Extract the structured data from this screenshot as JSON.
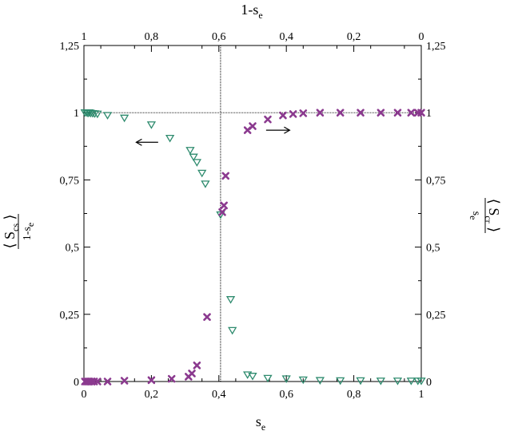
{
  "chart_data": {
    "type": "scatter",
    "x_axis": {
      "label": "s",
      "label_sub": "e",
      "range": [
        0,
        1
      ],
      "ticks": [
        0,
        0.2,
        0.4,
        0.6,
        0.8,
        1
      ],
      "tick_labels": [
        "0",
        "0,2",
        "0,4",
        "0,6",
        "0,8",
        "1"
      ]
    },
    "top_axis": {
      "label": "1-s",
      "label_sub": "e",
      "range": [
        1,
        0
      ],
      "ticks": [
        1,
        0.8,
        0.6,
        0.4,
        0.2,
        0
      ],
      "tick_labels": [
        "1",
        "0,8",
        "0,6",
        "0,4",
        "0,2",
        "0"
      ]
    },
    "y_axis": {
      "range": [
        0,
        1.25
      ],
      "ticks": [
        0,
        0.25,
        0.5,
        0.75,
        1,
        1.25
      ],
      "tick_labels": [
        "0",
        "0,25",
        "0,5",
        "0,75",
        "1",
        "1,25"
      ]
    },
    "y_left_label": {
      "num": "S",
      "num_sub": "cs",
      "den": "1-s",
      "den_sub": "e"
    },
    "y_right_label": {
      "num": "S",
      "num_sub": "cr",
      "den": "s",
      "den_sub": "e"
    },
    "vertical_line_x": 0.405,
    "horizontal_line_y": 1,
    "grid": false,
    "series": [
      {
        "marker": "triangle-down-open",
        "color": "#2e8b6e",
        "points": [
          [
            0.003,
            1.0
          ],
          [
            0.008,
            1.0
          ],
          [
            0.012,
            0.998
          ],
          [
            0.016,
            1.0
          ],
          [
            0.02,
            0.998
          ],
          [
            0.026,
            0.997
          ],
          [
            0.032,
            0.996
          ],
          [
            0.04,
            0.995
          ],
          [
            0.07,
            0.99
          ],
          [
            0.12,
            0.98
          ],
          [
            0.2,
            0.955
          ],
          [
            0.255,
            0.905
          ],
          [
            0.315,
            0.86
          ],
          [
            0.325,
            0.835
          ],
          [
            0.335,
            0.815
          ],
          [
            0.35,
            0.775
          ],
          [
            0.36,
            0.735
          ],
          [
            0.405,
            0.62
          ],
          [
            0.435,
            0.305
          ],
          [
            0.44,
            0.19
          ],
          [
            0.485,
            0.025
          ],
          [
            0.5,
            0.02
          ],
          [
            0.545,
            0.012
          ],
          [
            0.6,
            0.01
          ],
          [
            0.65,
            0.006
          ],
          [
            0.7,
            0.004
          ],
          [
            0.76,
            0.003
          ],
          [
            0.82,
            0.003
          ],
          [
            0.88,
            0.002
          ],
          [
            0.93,
            0.002
          ],
          [
            0.97,
            0.002
          ],
          [
            0.99,
            0.002
          ],
          [
            1.0,
            0.002
          ]
        ]
      },
      {
        "marker": "x",
        "color": "#8b3a8f",
        "points": [
          [
            0.003,
            0.0
          ],
          [
            0.008,
            0.0
          ],
          [
            0.012,
            0.0
          ],
          [
            0.016,
            0.0
          ],
          [
            0.022,
            0.0
          ],
          [
            0.03,
            0.0
          ],
          [
            0.04,
            0.0
          ],
          [
            0.07,
            0.0
          ],
          [
            0.12,
            0.003
          ],
          [
            0.2,
            0.005
          ],
          [
            0.26,
            0.01
          ],
          [
            0.31,
            0.018
          ],
          [
            0.32,
            0.03
          ],
          [
            0.335,
            0.06
          ],
          [
            0.365,
            0.24
          ],
          [
            0.41,
            0.63
          ],
          [
            0.415,
            0.655
          ],
          [
            0.42,
            0.765
          ],
          [
            0.485,
            0.935
          ],
          [
            0.5,
            0.95
          ],
          [
            0.545,
            0.975
          ],
          [
            0.59,
            0.99
          ],
          [
            0.62,
            0.995
          ],
          [
            0.65,
            0.998
          ],
          [
            0.7,
            1.0
          ],
          [
            0.76,
            1.0
          ],
          [
            0.82,
            1.0
          ],
          [
            0.88,
            1.0
          ],
          [
            0.93,
            1.0
          ],
          [
            0.97,
            1.0
          ],
          [
            0.99,
            1.0
          ],
          [
            1.0,
            1.0
          ]
        ]
      }
    ],
    "annotations": [
      {
        "type": "arrow",
        "direction": "left",
        "x_from": 0.22,
        "x_to": 0.155,
        "y": 0.89
      },
      {
        "type": "arrow",
        "direction": "right",
        "x_from": 0.54,
        "x_to": 0.61,
        "y": 0.935
      }
    ]
  }
}
